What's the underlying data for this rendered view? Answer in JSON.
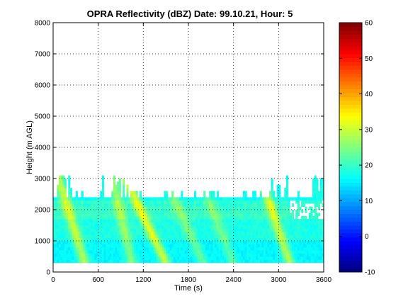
{
  "chart_data": {
    "type": "heatmap",
    "title": "OPRA Reflectivity (dBZ)  Date: 99.10.21, Hour: 5",
    "xlabel": "Time (s)",
    "ylabel": "Height (m AGL)",
    "xlim": [
      0,
      3600
    ],
    "ylim": [
      0,
      8000
    ],
    "xticks": [
      "0",
      "600",
      "1200",
      "1800",
      "2400",
      "3000",
      "3600"
    ],
    "yticks": [
      "0",
      "1000",
      "2000",
      "3000",
      "4000",
      "5000",
      "6000",
      "7000",
      "8000"
    ],
    "grid": true,
    "colorbar": {
      "range": [
        -10,
        60
      ],
      "ticks": [
        "-10",
        "0",
        "10",
        "20",
        "30",
        "40",
        "50",
        "60"
      ],
      "colormap": "jet"
    },
    "echo_layer": {
      "base_height_m": 300,
      "typical_top_m": 2400,
      "max_top_m": 3100,
      "background_dbz": 18
    },
    "bright_streaks": [
      {
        "t_top": 150,
        "t_bottom": 420,
        "peak_dbz": 30
      },
      {
        "t_top": 850,
        "t_bottom": 1050,
        "peak_dbz": 27
      },
      {
        "t_top": 1080,
        "t_bottom": 1500,
        "peak_dbz": 32
      },
      {
        "t_top": 1600,
        "t_bottom": 2000,
        "peak_dbz": 25
      },
      {
        "t_top": 2050,
        "t_bottom": 2400,
        "peak_dbz": 24
      },
      {
        "t_top": 2850,
        "t_bottom": 3150,
        "peak_dbz": 30
      }
    ]
  }
}
